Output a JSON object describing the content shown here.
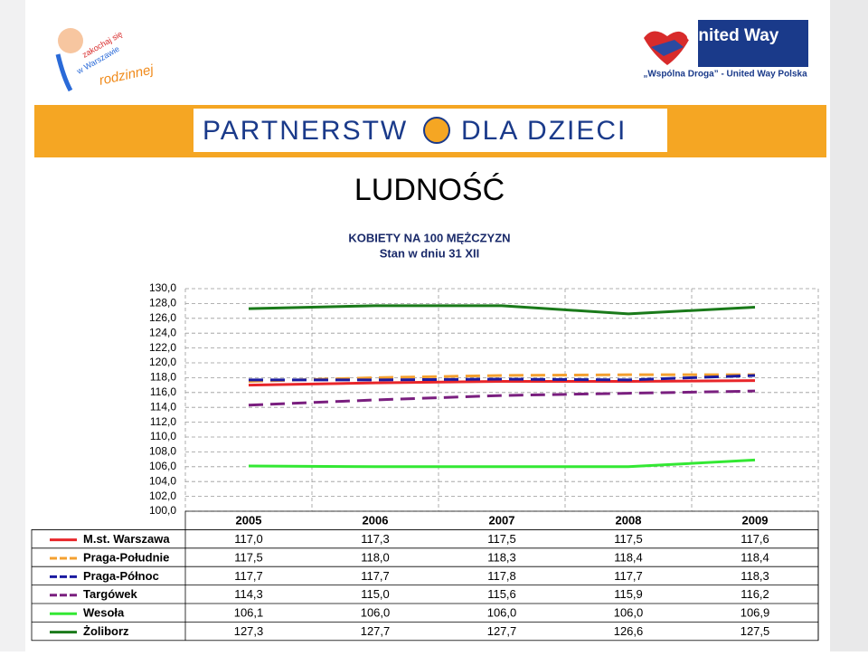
{
  "header": {
    "left_logo": [
      "zakochaj się",
      "w Warszawie",
      "rodzinnej"
    ],
    "right_logo": "United Way",
    "right_tagline": "„Wspólna Droga” - United Way Polska",
    "banner": [
      "PARTNERSTW",
      "DLA DZIECI"
    ]
  },
  "chart_data": {
    "type": "line",
    "title": "LUDNOŚĆ",
    "subtitle": [
      "KOBIETY NA 100 MĘŻCZYZN",
      "Stan w dniu 31 XII"
    ],
    "categories": [
      "2005",
      "2006",
      "2007",
      "2008",
      "2009"
    ],
    "ylim": [
      100,
      130
    ],
    "yticks": [
      {
        "value": 100,
        "label": "100,0"
      },
      {
        "value": 102,
        "label": "102,0"
      },
      {
        "value": 104,
        "label": "104,0"
      },
      {
        "value": 106,
        "label": "106,0"
      },
      {
        "value": 108,
        "label": "108,0"
      },
      {
        "value": 110,
        "label": "110,0"
      },
      {
        "value": 112,
        "label": "112,0"
      },
      {
        "value": 114,
        "label": "114,0"
      },
      {
        "value": 116,
        "label": "116,0"
      },
      {
        "value": 118,
        "label": "118,0"
      },
      {
        "value": 120,
        "label": "120,0"
      },
      {
        "value": 122,
        "label": "122,0"
      },
      {
        "value": 124,
        "label": "124,0"
      },
      {
        "value": 126,
        "label": "126,0"
      },
      {
        "value": 128,
        "label": "128,0"
      },
      {
        "value": 130,
        "label": "130,0"
      }
    ],
    "grid": true,
    "series": [
      {
        "name": "M.st. Warszawa",
        "color": "#e8262a",
        "dashed": false,
        "values": [
          117.0,
          117.3,
          117.5,
          117.5,
          117.6
        ],
        "value_labels": [
          "117,0",
          "117,3",
          "117,5",
          "117,5",
          "117,6"
        ]
      },
      {
        "name": "Praga-Południe",
        "color": "#f4a030",
        "dashed": true,
        "values": [
          117.5,
          118.0,
          118.3,
          118.4,
          118.4
        ],
        "value_labels": [
          "117,5",
          "118,0",
          "118,3",
          "118,4",
          "118,4"
        ]
      },
      {
        "name": "Praga-Północ",
        "color": "#1a1aa0",
        "dashed": true,
        "values": [
          117.7,
          117.7,
          117.8,
          117.7,
          118.3
        ],
        "value_labels": [
          "117,7",
          "117,7",
          "117,8",
          "117,7",
          "118,3"
        ]
      },
      {
        "name": "Targówek",
        "color": "#7a1f7f",
        "dashed": true,
        "values": [
          114.3,
          115.0,
          115.6,
          115.9,
          116.2
        ],
        "value_labels": [
          "114,3",
          "115,0",
          "115,6",
          "115,9",
          "116,2"
        ]
      },
      {
        "name": "Wesoła",
        "color": "#33e833",
        "dashed": false,
        "values": [
          106.1,
          106.0,
          106.0,
          106.0,
          106.9
        ],
        "value_labels": [
          "106,1",
          "106,0",
          "106,0",
          "106,0",
          "106,9"
        ]
      },
      {
        "name": "Żoliborz",
        "color": "#1a7a1a",
        "dashed": false,
        "values": [
          127.3,
          127.7,
          127.7,
          126.6,
          127.5
        ],
        "value_labels": [
          "127,3",
          "127,7",
          "127,7",
          "126,6",
          "127,5"
        ]
      }
    ]
  }
}
